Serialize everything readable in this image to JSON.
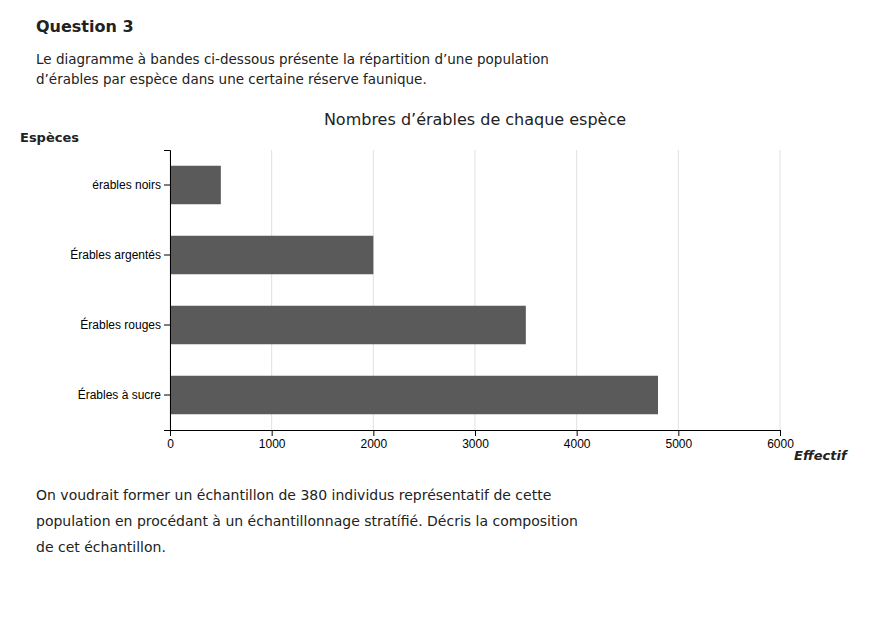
{
  "chart_data": {
    "type": "bar",
    "orientation": "horizontal",
    "title": "Nombres d’érables de chaque espèce",
    "x_label": "Effectif",
    "y_label": "Espèces",
    "categories": [
      "Érables à sucre",
      "Érables rouges",
      "Érables argentés",
      "érables noirs"
    ],
    "values": [
      4800,
      3500,
      2000,
      500
    ],
    "color": "#5a5a5a",
    "xlim": [
      0,
      6000
    ],
    "xticks": [
      0,
      1000,
      2000,
      3000,
      4000,
      5000,
      6000
    ],
    "grid": true,
    "annotations": [
      "Question 3",
      "Le diagramme à bandes ci-dessous présente la répartition d’une population",
      "d’érables par espèce dans une certaine réserve faunique.",
      "On voudrait former un échantillon de 380 individus représentatif de cette",
      "population en procédant à un échantillonnage stratífié. Décris la composition",
      "de cet échantillon."
    ]
  }
}
